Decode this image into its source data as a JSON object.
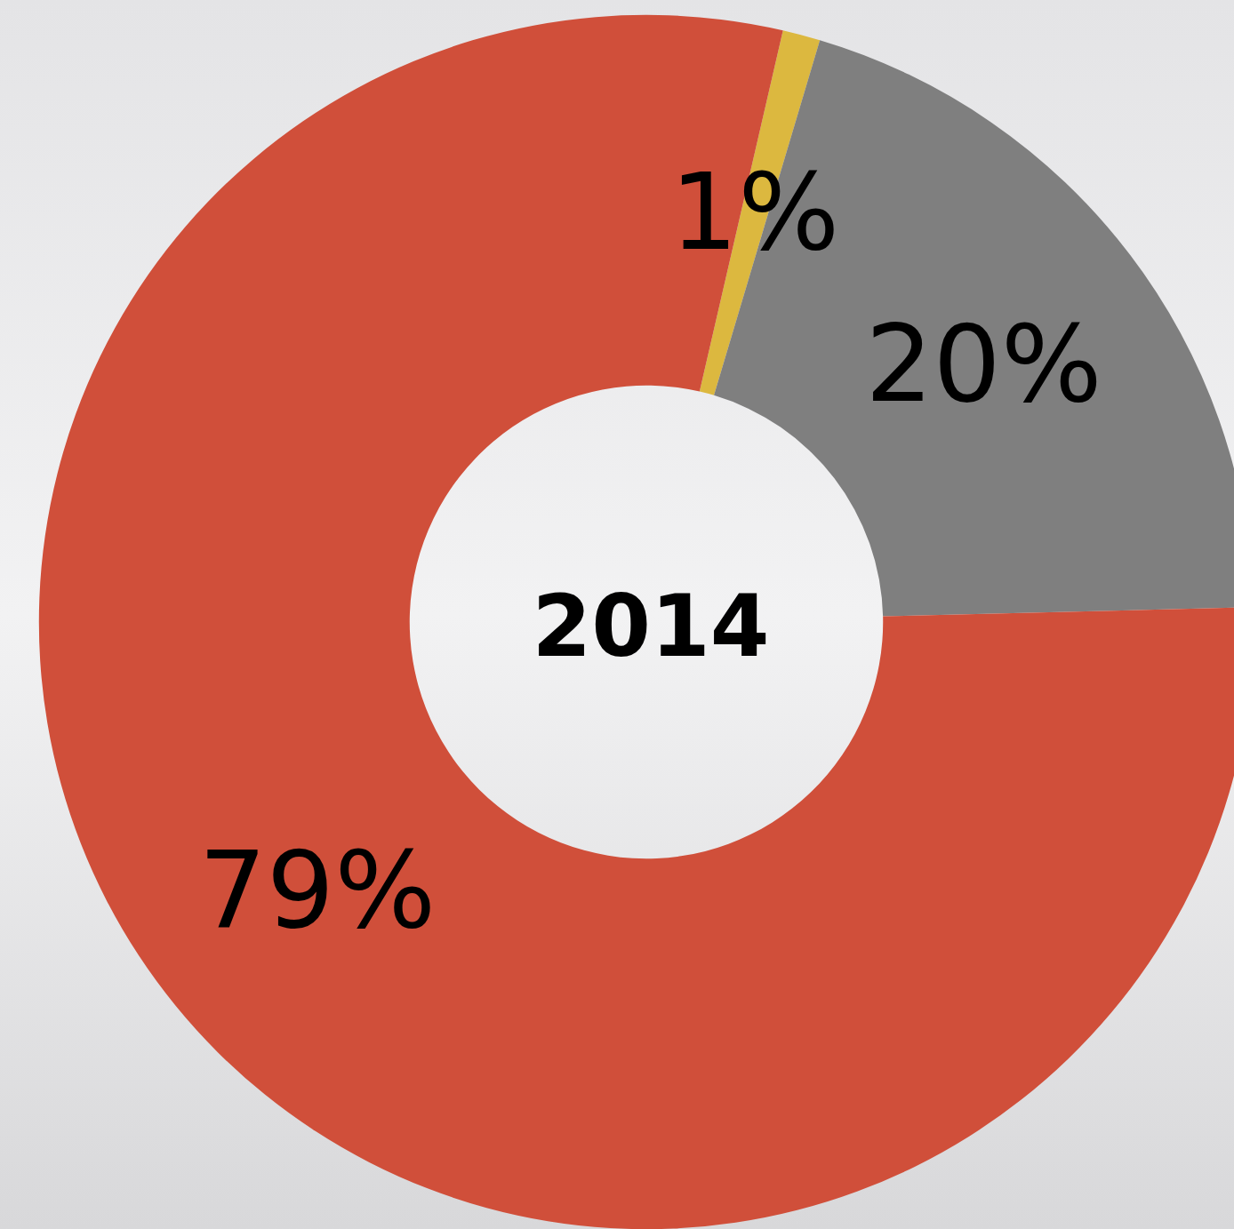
{
  "chart_data": {
    "type": "donut",
    "title": "2014",
    "categories": [
      null,
      null,
      null
    ],
    "values": [
      1,
      20,
      79
    ],
    "colors": [
      "#dcb83f",
      "#7f7f7f",
      "#d04f3a"
    ],
    "value_labels": [
      "1%",
      "20%",
      "79%"
    ]
  }
}
